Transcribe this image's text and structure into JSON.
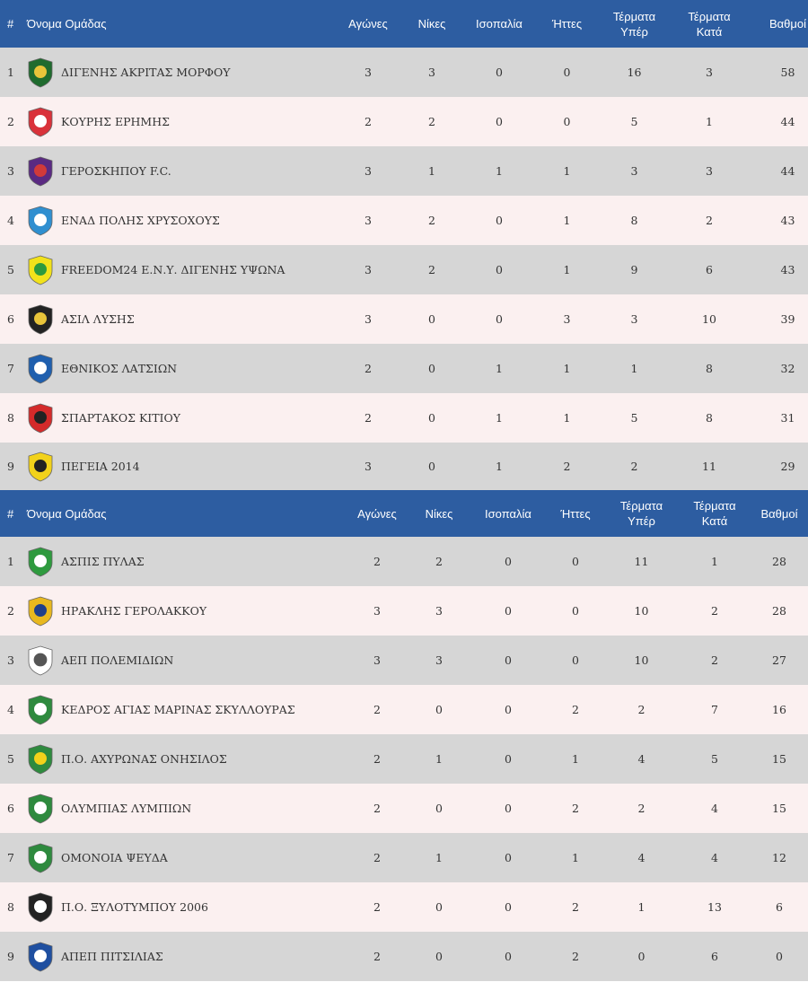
{
  "columns": {
    "rank": "#",
    "team": "Όνομα Ομάδας",
    "played": "Αγώνες",
    "wins": "Νίκες",
    "draws": "Ισοπαλία",
    "losses": "Ήττες",
    "goals_for_1": "Τέρματα",
    "goals_for_2": "Υπέρ",
    "goals_against_1": "Τέρματα",
    "goals_against_2": "Κατά",
    "points": "Βαθμοί"
  },
  "tables": [
    {
      "rows": [
        {
          "rank": "1",
          "team": "ΔΙΓΕΝΗΣ ΑΚΡΙΤΑΣ ΜΟΡΦΟΥ",
          "played": "3",
          "wins": "3",
          "draws": "0",
          "losses": "0",
          "gf": "16",
          "ga": "3",
          "points": "58",
          "logo": "digenis-morfou-logo",
          "logo_colors": [
            "#1f6b2e",
            "#e8c43a"
          ]
        },
        {
          "rank": "2",
          "team": "ΚΟΥΡΗΣ ΕΡΗΜΗΣ",
          "played": "2",
          "wins": "2",
          "draws": "0",
          "losses": "0",
          "gf": "5",
          "ga": "1",
          "points": "44",
          "logo": "kouris-erimis-logo",
          "logo_colors": [
            "#d9323a",
            "#ffffff"
          ]
        },
        {
          "rank": "3",
          "team": "ΓΕΡΟΣΚΗΠΟΥ F.C.",
          "played": "3",
          "wins": "1",
          "draws": "1",
          "losses": "1",
          "gf": "3",
          "ga": "3",
          "points": "44",
          "logo": "geroskipou-logo",
          "logo_colors": [
            "#5a2a82",
            "#d13a3a"
          ]
        },
        {
          "rank": "4",
          "team": "ΕΝΑΔ ΠΟΛΗΣ ΧΡΥΣΟΧΟΥΣ",
          "played": "3",
          "wins": "2",
          "draws": "0",
          "losses": "1",
          "gf": "8",
          "ga": "2",
          "points": "43",
          "logo": "enad-polis-logo",
          "logo_colors": [
            "#2f8fd0",
            "#ffffff"
          ]
        },
        {
          "rank": "5",
          "team": "FREEDOM24 Ε.Ν.Υ. ΔΙΓΕΝΗΣ ΥΨΩΝΑ",
          "played": "3",
          "wins": "2",
          "draws": "0",
          "losses": "1",
          "gf": "9",
          "ga": "6",
          "points": "43",
          "logo": "digenis-ypsona-logo",
          "logo_colors": [
            "#f2e21b",
            "#2e9a3e"
          ]
        },
        {
          "rank": "6",
          "team": "ΑΣΙΛ ΛΥΣΗΣ",
          "played": "3",
          "wins": "0",
          "draws": "0",
          "losses": "3",
          "gf": "3",
          "ga": "10",
          "points": "39",
          "logo": "asil-lysis-logo",
          "logo_colors": [
            "#222222",
            "#e8c43a"
          ]
        },
        {
          "rank": "7",
          "team": "ΕΘΝΙΚΟΣ ΛΑΤΣΙΩΝ",
          "played": "2",
          "wins": "0",
          "draws": "1",
          "losses": "1",
          "gf": "1",
          "ga": "8",
          "points": "32",
          "logo": "ethnikos-latsion-logo",
          "logo_colors": [
            "#1f5fae",
            "#ffffff"
          ]
        },
        {
          "rank": "8",
          "team": "ΣΠΑΡΤΑΚΟΣ ΚΙΤΙΟΥ",
          "played": "2",
          "wins": "0",
          "draws": "1",
          "losses": "1",
          "gf": "5",
          "ga": "8",
          "points": "31",
          "logo": "spartakos-kitiou-logo",
          "logo_colors": [
            "#d42a2a",
            "#222222"
          ]
        },
        {
          "rank": "9",
          "team": "ΠΕΓΕΙΑ 2014",
          "played": "3",
          "wins": "0",
          "draws": "1",
          "losses": "2",
          "gf": "2",
          "ga": "11",
          "points": "29",
          "logo": "pegeia-logo",
          "logo_colors": [
            "#f2d21b",
            "#222222"
          ]
        }
      ]
    },
    {
      "rows": [
        {
          "rank": "1",
          "team": "ΑΣΠΙΣ ΠΥΛΑΣ",
          "played": "2",
          "wins": "2",
          "draws": "0",
          "losses": "0",
          "gf": "11",
          "ga": "1",
          "points": "28",
          "logo": "aspis-pylas-logo",
          "logo_colors": [
            "#2e9a3e",
            "#ffffff"
          ]
        },
        {
          "rank": "2",
          "team": "ΗΡΑΚΛΗΣ ΓΕΡΟΛΑΚΚΟΥ",
          "played": "3",
          "wins": "3",
          "draws": "0",
          "losses": "0",
          "gf": "10",
          "ga": "2",
          "points": "28",
          "logo": "iraklis-gerolakkou-logo",
          "logo_colors": [
            "#e8b81f",
            "#1f3f8a"
          ]
        },
        {
          "rank": "3",
          "team": "ΑΕΠ ΠΟΛΕΜΙΔΙΩΝ",
          "played": "3",
          "wins": "3",
          "draws": "0",
          "losses": "0",
          "gf": "10",
          "ga": "2",
          "points": "27",
          "logo": "aep-polemidion-logo",
          "logo_colors": [
            "#ffffff",
            "#555555"
          ]
        },
        {
          "rank": "4",
          "team": "ΚΕΔΡΟΣ ΑΓΙΑΣ ΜΑΡΙΝΑΣ ΣΚΥΛΛΟΥΡΑΣ",
          "played": "2",
          "wins": "0",
          "draws": "0",
          "losses": "2",
          "gf": "2",
          "ga": "7",
          "points": "16",
          "logo": "kedros-logo",
          "logo_colors": [
            "#2e8a3e",
            "#ffffff"
          ]
        },
        {
          "rank": "5",
          "team": "Π.Ο. ΑΧΥΡΩΝΑΣ ΟΝΗΣΙΛΟΣ",
          "played": "2",
          "wins": "1",
          "draws": "0",
          "losses": "1",
          "gf": "4",
          "ga": "5",
          "points": "15",
          "logo": "achyronas-logo",
          "logo_colors": [
            "#2e8a3e",
            "#f2d21b"
          ]
        },
        {
          "rank": "6",
          "team": "ΟΛΥΜΠΙΑΣ ΛΥΜΠΙΩΝ",
          "played": "2",
          "wins": "0",
          "draws": "0",
          "losses": "2",
          "gf": "2",
          "ga": "4",
          "points": "15",
          "logo": "olympias-lympion-logo",
          "logo_colors": [
            "#2e8a3e",
            "#ffffff"
          ]
        },
        {
          "rank": "7",
          "team": "ΟΜΟΝΟΙΑ ΨΕΥΔΑ",
          "played": "2",
          "wins": "1",
          "draws": "0",
          "losses": "1",
          "gf": "4",
          "ga": "4",
          "points": "12",
          "logo": "omonoia-psevda-logo",
          "logo_colors": [
            "#2e8a3e",
            "#ffffff"
          ]
        },
        {
          "rank": "8",
          "team": "Π.Ο. ΞΥΛΟΤΥΜΠΟΥ 2006",
          "played": "2",
          "wins": "0",
          "draws": "0",
          "losses": "2",
          "gf": "1",
          "ga": "13",
          "points": "6",
          "logo": "xylotymbou-logo",
          "logo_colors": [
            "#222222",
            "#ffffff"
          ]
        },
        {
          "rank": "9",
          "team": "ΑΠΕΠ ΠΙΤΣΙΛΙΑΣ",
          "played": "2",
          "wins": "0",
          "draws": "0",
          "losses": "2",
          "gf": "0",
          "ga": "6",
          "points": "0",
          "logo": "apep-pitsilias-logo",
          "logo_colors": [
            "#1f4fa0",
            "#ffffff"
          ]
        }
      ]
    }
  ]
}
